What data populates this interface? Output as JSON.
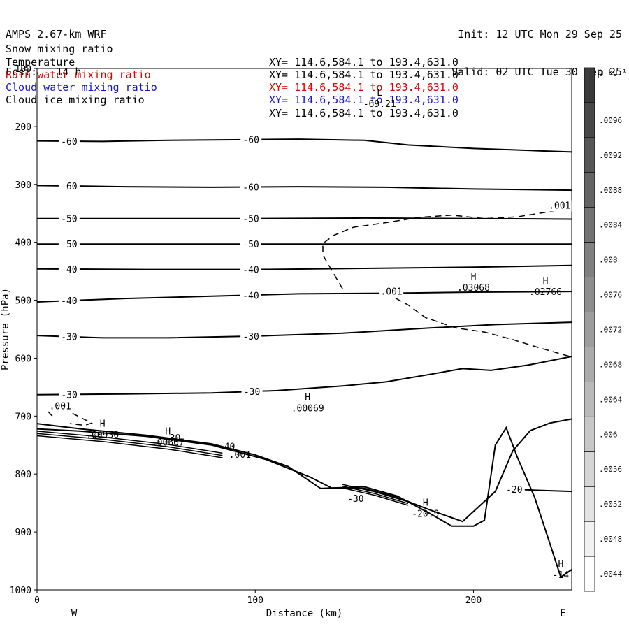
{
  "header": {
    "title": "AMPS 2.67-km WRF",
    "forecast": "Fcst:   14 h",
    "init": "Init: 12 UTC Mon 29 Sep 25",
    "valid": "Valid: 02 UTC Tue 30 Sep 25"
  },
  "fields": [
    {
      "name": "Snow mixing ratio",
      "xy": "XY= 114.6,584.1 to 193.4,631.0",
      "color": "#000000"
    },
    {
      "name": "Temperature",
      "xy": "XY= 114.6,584.1 to 193.4,631.0",
      "color": "#000000"
    },
    {
      "name": "Rain water mixing ratio",
      "xy": "XY= 114.6,584.1 to 193.4,631.0",
      "color": "#e00000"
    },
    {
      "name": "Cloud water mixing ratio",
      "xy": "XY= 114.6,584.1 to 193.4,631.0",
      "color": "#1515c8"
    },
    {
      "name": "Cloud ice mixing ratio",
      "xy": "XY= 114.6,584.1 to 193.4,631.0",
      "color": "#000000"
    }
  ],
  "chart_data": {
    "type": "contour cross-section",
    "xlabel": "Distance (km)",
    "ylabel": "Pressure (hPa)",
    "x_ticks": [
      0,
      100,
      200
    ],
    "y_ticks": [
      100,
      200,
      300,
      400,
      500,
      600,
      700,
      800,
      900,
      1000
    ],
    "xlim": [
      0,
      245
    ],
    "ylim": [
      100,
      1000
    ],
    "y_inverted": true,
    "direction_left": "W",
    "direction_right": "E",
    "colorbar": {
      "unit": "g kg⁻¹",
      "levels": [
        ".0044",
        ".0048",
        ".0052",
        ".0056",
        ".006",
        ".0064",
        ".0068",
        ".0072",
        ".0076",
        ".008",
        ".0084",
        ".0088",
        ".0092",
        ".0096"
      ]
    },
    "isotherms": [
      {
        "label": "-60",
        "points": [
          [
            0,
            225
          ],
          [
            30,
            226
          ],
          [
            60,
            224
          ],
          [
            90,
            223
          ],
          [
            120,
            222
          ],
          [
            150,
            224
          ],
          [
            170,
            232
          ],
          [
            200,
            238
          ],
          [
            230,
            242
          ],
          [
            245,
            244
          ]
        ]
      },
      {
        "label": "-60",
        "points": [
          [
            0,
            302
          ],
          [
            40,
            304
          ],
          [
            80,
            305
          ],
          [
            120,
            304
          ],
          [
            160,
            305
          ],
          [
            200,
            308
          ],
          [
            245,
            310
          ]
        ]
      },
      {
        "label": "-50",
        "points": [
          [
            0,
            359
          ],
          [
            50,
            359
          ],
          [
            100,
            359
          ],
          [
            150,
            358
          ],
          [
            200,
            359
          ],
          [
            245,
            360
          ]
        ]
      },
      {
        "label": "-50",
        "points": [
          [
            0,
            403
          ],
          [
            50,
            403
          ],
          [
            100,
            403
          ],
          [
            150,
            403
          ],
          [
            200,
            403
          ],
          [
            245,
            403
          ]
        ]
      },
      {
        "label": "-40",
        "points": [
          [
            0,
            446
          ],
          [
            50,
            447
          ],
          [
            100,
            447
          ],
          [
            150,
            445
          ],
          [
            200,
            443
          ],
          [
            245,
            440
          ]
        ]
      },
      {
        "label": "-40",
        "points": [
          [
            0,
            503
          ],
          [
            40,
            497
          ],
          [
            80,
            493
          ],
          [
            120,
            489
          ],
          [
            160,
            488
          ],
          [
            200,
            486
          ],
          [
            245,
            485
          ]
        ]
      },
      {
        "label": "-30",
        "points": [
          [
            0,
            561
          ],
          [
            30,
            565
          ],
          [
            60,
            565
          ],
          [
            100,
            562
          ],
          [
            140,
            557
          ],
          [
            180,
            548
          ],
          [
            210,
            542
          ],
          [
            245,
            538
          ]
        ]
      },
      {
        "label": "-30",
        "points": [
          [
            0,
            663
          ],
          [
            40,
            662
          ],
          [
            80,
            660
          ],
          [
            110,
            656
          ],
          [
            140,
            648
          ],
          [
            160,
            641
          ],
          [
            180,
            628
          ],
          [
            195,
            618
          ],
          [
            208,
            621
          ],
          [
            225,
            612
          ],
          [
            245,
            597
          ]
        ]
      },
      {
        "label": "-20",
        "points": [
          [
            217,
            826
          ],
          [
            228,
            828
          ],
          [
            245,
            830
          ]
        ]
      }
    ],
    "mixing_ratio_contours": [
      {
        "label": ".001",
        "style": "dashed",
        "points": [
          [
            140,
            480
          ],
          [
            135,
            448
          ],
          [
            131,
            422
          ],
          [
            131,
            402
          ],
          [
            136,
            388
          ],
          [
            145,
            374
          ],
          [
            160,
            366
          ],
          [
            175,
            357
          ],
          [
            190,
            353
          ],
          [
            205,
            359
          ],
          [
            220,
            356
          ],
          [
            235,
            347
          ],
          [
            245,
            341
          ]
        ]
      },
      {
        "label": ".001",
        "style": "dashed",
        "points": [
          [
            160,
            488
          ],
          [
            170,
            508
          ],
          [
            178,
            530
          ],
          [
            192,
            548
          ],
          [
            205,
            555
          ],
          [
            218,
            568
          ],
          [
            230,
            582
          ],
          [
            245,
            598
          ]
        ]
      },
      {
        "label": ".001",
        "style": "dashed",
        "points": [
          [
            7,
            700
          ],
          [
            5,
            692
          ],
          [
            10,
            690
          ],
          [
            15,
            693
          ],
          [
            25,
            712
          ],
          [
            22,
            716
          ],
          [
            15,
            713
          ]
        ]
      }
    ],
    "terrain_surface": {
      "points": [
        [
          0,
          722
        ],
        [
          20,
          726
        ],
        [
          50,
          735
        ],
        [
          80,
          750
        ],
        [
          105,
          775
        ],
        [
          125,
          805
        ],
        [
          135,
          824
        ],
        [
          150,
          825
        ],
        [
          165,
          840
        ],
        [
          180,
          862
        ],
        [
          195,
          882
        ],
        [
          210,
          830
        ],
        [
          218,
          760
        ],
        [
          226,
          725
        ],
        [
          235,
          712
        ],
        [
          245,
          705
        ]
      ]
    },
    "lower_surface": {
      "points": [
        [
          0,
          713
        ],
        [
          20,
          722
        ],
        [
          50,
          733
        ],
        [
          80,
          748
        ],
        [
          100,
          767
        ],
        [
          115,
          787
        ],
        [
          130,
          825
        ],
        [
          150,
          822
        ],
        [
          165,
          838
        ],
        [
          180,
          868
        ],
        [
          190,
          890
        ],
        [
          200,
          890
        ],
        [
          205,
          880
        ],
        [
          210,
          750
        ],
        [
          215,
          720
        ],
        [
          220,
          770
        ],
        [
          228,
          840
        ],
        [
          235,
          920
        ],
        [
          240,
          978
        ],
        [
          245,
          965
        ]
      ]
    },
    "extrema": [
      {
        "type": "L",
        "value": "-69.21",
        "x": 157,
        "y": 157
      },
      {
        "type": "H",
        "value": ".03068",
        "x": 200,
        "y": 474
      },
      {
        "type": "H",
        "value": ".02766",
        "x": 233,
        "y": 481
      },
      {
        "type": "H",
        "value": ".00069",
        "x": 124,
        "y": 682
      },
      {
        "type": "H",
        "value": ".00930",
        "x": 30,
        "y": 728
      },
      {
        "type": "H",
        "value": ".00667",
        "x": 60,
        "y": 741
      },
      {
        "type": "H",
        "value": "-20.9",
        "x": 178,
        "y": 864
      },
      {
        "type": "H",
        "value": "-14",
        "x": 240,
        "y": 970
      }
    ],
    "extra_labels": [
      {
        "text": "-30",
        "x": 62,
        "y": 737
      },
      {
        "text": "-40",
        "x": 87,
        "y": 752
      },
      {
        "text": ".001",
        "x": 93,
        "y": 766
      },
      {
        "text": "-30",
        "x": 146,
        "y": 842
      }
    ]
  }
}
